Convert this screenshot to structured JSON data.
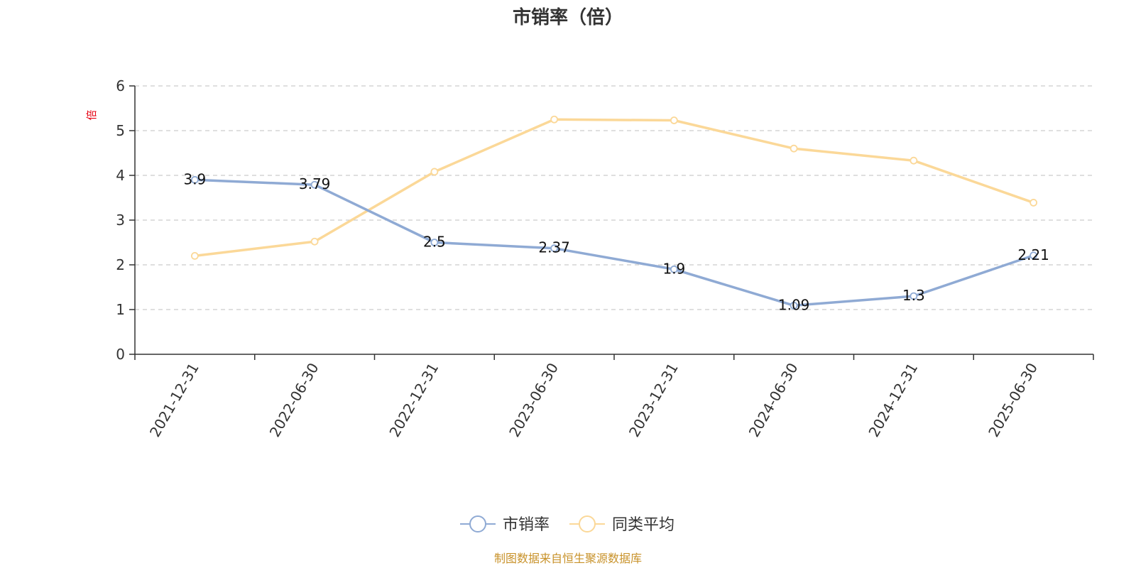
{
  "chart_data": {
    "type": "line",
    "title": "市销率（倍）",
    "ylabel": "倍",
    "ylim": [
      0,
      6
    ],
    "yticks": [
      0,
      1,
      2,
      3,
      4,
      5,
      6
    ],
    "categories": [
      "2021-12-31",
      "2022-06-30",
      "2022-12-31",
      "2023-06-30",
      "2023-12-31",
      "2024-06-30",
      "2024-12-31",
      "2025-06-30"
    ],
    "series": [
      {
        "name": "市销率",
        "color": "#8faad4",
        "show_labels": true,
        "values": [
          3.9,
          3.79,
          2.5,
          2.37,
          1.9,
          1.09,
          1.3,
          2.21
        ],
        "labels": [
          "3.9",
          "3.79",
          "2.5",
          "2.37",
          "1.9",
          "1.09",
          "1.3",
          "2.21"
        ]
      },
      {
        "name": "同类平均",
        "color": "#fbd898",
        "show_labels": false,
        "values": [
          2.2,
          2.52,
          4.08,
          5.25,
          5.23,
          4.6,
          4.33,
          3.39
        ]
      }
    ],
    "grid": true,
    "legend_position": "bottom-center",
    "source": "制图数据来自恒生聚源数据库",
    "source_color": "#c8922a",
    "unit_color": "#e60012"
  }
}
